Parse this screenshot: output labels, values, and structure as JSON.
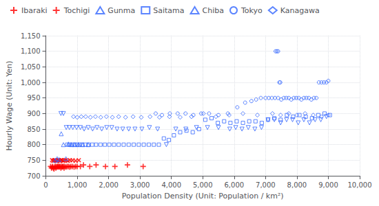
{
  "chart_data": {
    "type": "scatter",
    "xlabel": "Population Density (Unit: Population / km²)",
    "ylabel": "Hourly Wage (Unit: Yen)",
    "xlim": [
      0,
      10000
    ],
    "ylim": [
      700,
      1150
    ],
    "xticks": [
      0,
      1000,
      2000,
      3000,
      4000,
      5000,
      6000,
      7000,
      8000,
      9000,
      10000
    ],
    "yticks": [
      700,
      750,
      800,
      850,
      900,
      950,
      1000,
      1050,
      1100,
      1150
    ],
    "grid": true,
    "legend": "upper left",
    "series": [
      {
        "name": "Ibaraki",
        "color": "#ff0000",
        "marker": "plus",
        "x": [
          150,
          180,
          200,
          220,
          240,
          260,
          280,
          300,
          320,
          340,
          360,
          380,
          400,
          420,
          440,
          460,
          480,
          500,
          520,
          540,
          560,
          580,
          600,
          640,
          680,
          720,
          760,
          800,
          850,
          900,
          950,
          1000,
          1100,
          1200,
          1400,
          1600,
          1900,
          2200,
          2600,
          3100
        ],
        "values": [
          730,
          725,
          728,
          730,
          725,
          722,
          728,
          730,
          725,
          730,
          728,
          730,
          730,
          728,
          730,
          730,
          725,
          730,
          728,
          730,
          730,
          725,
          730,
          728,
          730,
          730,
          728,
          730,
          730,
          728,
          730,
          730,
          730,
          735,
          730,
          735,
          730,
          730,
          735,
          730
        ]
      },
      {
        "name": "Tochigi",
        "color": "#ff0000",
        "marker": "x",
        "x": [
          200,
          240,
          270,
          300,
          330,
          360,
          390,
          420,
          450,
          480,
          510,
          550,
          590,
          640,
          700,
          770,
          850,
          950,
          1050
        ],
        "values": [
          750,
          748,
          750,
          750,
          748,
          748,
          750,
          750,
          748,
          750,
          750,
          748,
          750,
          750,
          748,
          750,
          750,
          748,
          750
        ]
      },
      {
        "name": "Gunma",
        "color": "#3366ff",
        "marker": "triangle-up",
        "x": [
          300,
          360,
          420,
          490,
          560,
          640,
          720,
          810,
          920,
          1040,
          1180,
          1350
        ],
        "values": [
          750,
          755,
          752,
          835,
          800,
          755,
          802,
          800,
          800,
          800,
          800,
          800
        ]
      },
      {
        "name": "Saitama",
        "color": "#3366ff",
        "marker": "square",
        "x": [
          680,
          760,
          840,
          920,
          1000,
          1080,
          1160,
          1260,
          1360,
          1480,
          1600,
          1740,
          1880,
          2020,
          2170,
          2320,
          2480,
          2640,
          2800,
          2960,
          3120,
          3280,
          3440,
          3600,
          3760,
          3920,
          4080,
          4280,
          4480,
          4680,
          4880,
          5080,
          5280,
          5480,
          5680,
          5880,
          6080,
          6280,
          6480,
          6680,
          6880,
          7080,
          7280,
          7480,
          7680,
          7880,
          8080,
          8280,
          8480,
          8680,
          8880,
          9050
        ],
        "values": [
          800,
          800,
          800,
          800,
          800,
          800,
          800,
          800,
          800,
          800,
          800,
          800,
          800,
          800,
          800,
          800,
          800,
          800,
          800,
          800,
          800,
          800,
          800,
          800,
          820,
          815,
          830,
          840,
          845,
          840,
          850,
          880,
          885,
          870,
          875,
          870,
          875,
          870,
          875,
          875,
          870,
          880,
          885,
          880,
          895,
          890,
          895,
          890,
          885,
          895,
          900,
          895
        ]
      },
      {
        "name": "Chiba",
        "color": "#3366ff",
        "marker": "triangle-down",
        "x": [
          480,
          560,
          650,
          750,
          860,
          980,
          1100,
          1220,
          1350,
          1490,
          1630,
          1780,
          1940,
          2100,
          2270,
          2450,
          2640,
          2840,
          3060,
          3300,
          3560,
          3840,
          4140,
          4460,
          4800,
          5150,
          5500,
          5860,
          6050,
          6250,
          6450,
          6660,
          6870,
          7080,
          7280,
          7480,
          7670,
          7860,
          8040,
          8220,
          8400,
          8580,
          8760,
          8940
        ],
        "values": [
          900,
          900,
          855,
          855,
          855,
          855,
          855,
          850,
          855,
          850,
          855,
          850,
          855,
          855,
          850,
          850,
          850,
          850,
          850,
          855,
          850,
          800,
          850,
          850,
          855,
          855,
          855,
          850,
          855,
          850,
          855,
          850,
          855,
          880,
          880,
          870,
          880,
          880,
          870,
          880,
          870,
          880,
          880,
          890
        ]
      },
      {
        "name": "Tokyo",
        "color": "#3366ff",
        "marker": "circle",
        "x": [
          3500,
          3700,
          3950,
          4200,
          4450,
          4700,
          4950,
          5200,
          5500,
          5800,
          6100,
          6350,
          6550,
          6700,
          6850,
          7000,
          7100,
          7200,
          7300,
          7400,
          7500,
          7580,
          7660,
          7740,
          7820,
          7900,
          7980,
          8060,
          8140,
          8220,
          8300,
          8380,
          8460,
          8540,
          8620,
          8700,
          8780,
          8860,
          8940,
          9000,
          7320,
          7360,
          7400,
          7440,
          7470
        ],
        "values": [
          900,
          895,
          900,
          900,
          900,
          895,
          900,
          900,
          895,
          900,
          920,
          935,
          940,
          945,
          950,
          950,
          950,
          950,
          950,
          950,
          945,
          950,
          950,
          950,
          945,
          950,
          950,
          950,
          945,
          950,
          950,
          950,
          945,
          950,
          950,
          1000,
          1000,
          1000,
          1000,
          1005,
          1100,
          1100,
          1100,
          1000,
          1000
        ]
      },
      {
        "name": "Kanagawa",
        "color": "#3366ff",
        "marker": "diamond",
        "x": [
          880,
          1000,
          1130,
          1270,
          1420,
          1580,
          1750,
          1930,
          2120,
          2320,
          2540,
          2780,
          3040,
          3320,
          3620,
          3940,
          4280,
          4640,
          5020,
          5420,
          5840,
          6280,
          6740,
          7220,
          7480,
          7740,
          8000,
          8260,
          8520,
          8780,
          9000
        ],
        "values": [
          890,
          888,
          890,
          890,
          888,
          890,
          888,
          890,
          888,
          890,
          888,
          890,
          888,
          890,
          888,
          890,
          888,
          890,
          900,
          890,
          895,
          900,
          895,
          900,
          895,
          900,
          895,
          900,
          895,
          890,
          895
        ]
      }
    ]
  }
}
